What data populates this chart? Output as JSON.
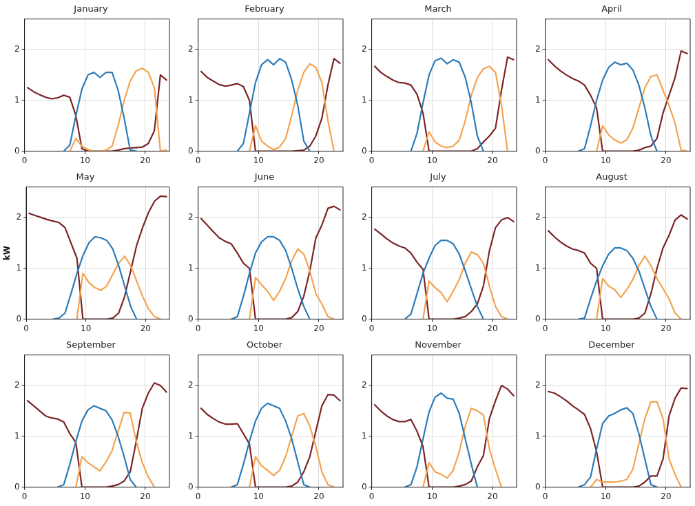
{
  "chart_data": [
    {
      "type": "line",
      "title": "January",
      "x": [
        0.5,
        1.5,
        2.5,
        3.5,
        4.5,
        5.5,
        6.5,
        7.5,
        8.5,
        9.5,
        10.5,
        11.5,
        12.5,
        13.5,
        14.5,
        15.5,
        16.5,
        17.5,
        18.5,
        19.5,
        20.5,
        21.5,
        22.5,
        23.5
      ],
      "xlim": [
        0,
        24
      ],
      "ylim": [
        0,
        2.6
      ],
      "xticks": [
        0,
        10,
        20
      ],
      "yticks": [
        0,
        1,
        2
      ],
      "grid": true,
      "series": [
        {
          "color": "#2b7bba",
          "values": [
            null,
            null,
            null,
            null,
            null,
            null,
            0,
            0.12,
            0.7,
            1.22,
            1.5,
            1.55,
            1.45,
            1.55,
            1.55,
            1.2,
            0.65,
            0.02,
            0,
            null,
            null,
            null,
            null,
            null
          ]
        },
        {
          "color": "#f4a34e",
          "values": [
            null,
            null,
            null,
            null,
            null,
            null,
            null,
            0,
            0.25,
            0.1,
            0.03,
            0,
            0,
            0.02,
            0.1,
            0.5,
            1.0,
            1.38,
            1.58,
            1.63,
            1.55,
            1.25,
            0,
            0.02
          ]
        },
        {
          "color": "#7a2426",
          "values": [
            1.25,
            1.17,
            1.11,
            1.06,
            1.03,
            1.05,
            1.1,
            1.06,
            0.7,
            0.05,
            0,
            0,
            0,
            0,
            0,
            0.02,
            0.05,
            0.06,
            0.07,
            0.08,
            0.15,
            0.4,
            1.5,
            1.4
          ]
        }
      ]
    },
    {
      "type": "line",
      "title": "February",
      "x": [
        0.5,
        1.5,
        2.5,
        3.5,
        4.5,
        5.5,
        6.5,
        7.5,
        8.5,
        9.5,
        10.5,
        11.5,
        12.5,
        13.5,
        14.5,
        15.5,
        16.5,
        17.5,
        18.5,
        19.5,
        20.5,
        21.5,
        22.5,
        23.5
      ],
      "xlim": [
        0,
        24
      ],
      "ylim": [
        0,
        2.6
      ],
      "xticks": [
        0,
        10,
        20
      ],
      "yticks": [
        0,
        1,
        2
      ],
      "grid": true,
      "series": [
        {
          "color": "#2b7bba",
          "values": [
            null,
            null,
            null,
            null,
            null,
            null,
            0,
            0.15,
            0.75,
            1.35,
            1.7,
            1.8,
            1.7,
            1.82,
            1.75,
            1.4,
            0.9,
            0.2,
            0,
            null,
            null,
            null,
            null,
            null
          ]
        },
        {
          "color": "#f4a34e",
          "values": [
            null,
            null,
            null,
            null,
            null,
            null,
            null,
            null,
            0,
            0.5,
            0.2,
            0.1,
            0.03,
            0.08,
            0.25,
            0.7,
            1.2,
            1.55,
            1.72,
            1.65,
            1.35,
            0.6,
            0,
            null
          ]
        },
        {
          "color": "#7a2426",
          "values": [
            1.57,
            1.45,
            1.38,
            1.31,
            1.28,
            1.3,
            1.33,
            1.27,
            1.0,
            0,
            0,
            0,
            0,
            0,
            0,
            0,
            0.01,
            0.02,
            0.1,
            0.3,
            0.65,
            1.3,
            1.82,
            1.73
          ]
        }
      ]
    },
    {
      "type": "line",
      "title": "March",
      "x": [
        0.5,
        1.5,
        2.5,
        3.5,
        4.5,
        5.5,
        6.5,
        7.5,
        8.5,
        9.5,
        10.5,
        11.5,
        12.5,
        13.5,
        14.5,
        15.5,
        16.5,
        17.5,
        18.5,
        19.5,
        20.5,
        21.5,
        22.5,
        23.5
      ],
      "xlim": [
        0,
        24
      ],
      "ylim": [
        0,
        2.6
      ],
      "xticks": [
        0,
        10,
        20
      ],
      "yticks": [
        0,
        1,
        2
      ],
      "grid": true,
      "series": [
        {
          "color": "#2b7bba",
          "values": [
            null,
            null,
            null,
            null,
            null,
            null,
            0,
            0.35,
            0.95,
            1.5,
            1.78,
            1.83,
            1.72,
            1.8,
            1.75,
            1.45,
            0.95,
            0.3,
            0,
            null,
            null,
            null,
            null,
            null
          ]
        },
        {
          "color": "#f4a34e",
          "values": [
            null,
            null,
            null,
            null,
            null,
            null,
            null,
            null,
            0,
            0.38,
            0.18,
            0.1,
            0.07,
            0.1,
            0.22,
            0.6,
            1.1,
            1.45,
            1.62,
            1.67,
            1.55,
            0.9,
            0,
            null
          ]
        },
        {
          "color": "#7a2426",
          "values": [
            1.67,
            1.55,
            1.47,
            1.4,
            1.35,
            1.34,
            1.3,
            1.12,
            0.75,
            0,
            0,
            0,
            0,
            0,
            0,
            0,
            0,
            0.05,
            0.18,
            0.3,
            0.45,
            1.2,
            1.85,
            1.8
          ]
        }
      ]
    },
    {
      "type": "line",
      "title": "April",
      "x": [
        0.5,
        1.5,
        2.5,
        3.5,
        4.5,
        5.5,
        6.5,
        7.5,
        8.5,
        9.5,
        10.5,
        11.5,
        12.5,
        13.5,
        14.5,
        15.5,
        16.5,
        17.5,
        18.5,
        19.5,
        20.5,
        21.5,
        22.5,
        23.5
      ],
      "xlim": [
        0,
        24
      ],
      "ylim": [
        0,
        2.6
      ],
      "xticks": [
        0,
        10,
        20
      ],
      "yticks": [
        0,
        1,
        2
      ],
      "grid": true,
      "series": [
        {
          "color": "#2b7bba",
          "values": [
            null,
            null,
            null,
            null,
            null,
            0,
            0.05,
            0.5,
            1.0,
            1.4,
            1.65,
            1.75,
            1.7,
            1.73,
            1.6,
            1.3,
            0.85,
            0.3,
            0,
            null,
            null,
            null,
            null,
            null
          ]
        },
        {
          "color": "#f4a34e",
          "values": [
            null,
            null,
            null,
            null,
            null,
            null,
            null,
            null,
            0,
            0.5,
            0.32,
            0.22,
            0.16,
            0.22,
            0.45,
            0.85,
            1.25,
            1.47,
            1.5,
            1.2,
            0.9,
            0.55,
            0.02,
            0
          ]
        },
        {
          "color": "#7a2426",
          "values": [
            1.8,
            1.68,
            1.58,
            1.5,
            1.43,
            1.38,
            1.3,
            1.1,
            0.85,
            0,
            0,
            0,
            0,
            0,
            0,
            0.02,
            0.07,
            0.1,
            0.25,
            0.75,
            1.1,
            1.45,
            1.97,
            1.92
          ]
        }
      ]
    },
    {
      "type": "line",
      "title": "May",
      "ylabel": "kW",
      "x": [
        0.5,
        1.5,
        2.5,
        3.5,
        4.5,
        5.5,
        6.5,
        7.5,
        8.5,
        9.5,
        10.5,
        11.5,
        12.5,
        13.5,
        14.5,
        15.5,
        16.5,
        17.5,
        18.5,
        19.5,
        20.5,
        21.5,
        22.5,
        23.5
      ],
      "xlim": [
        0,
        24
      ],
      "ylim": [
        0,
        2.6
      ],
      "xticks": [
        0,
        10,
        20
      ],
      "yticks": [
        0,
        1,
        2
      ],
      "grid": true,
      "series": [
        {
          "color": "#2b7bba",
          "values": [
            null,
            null,
            null,
            null,
            0,
            0.02,
            0.12,
            0.5,
            0.9,
            1.25,
            1.5,
            1.62,
            1.6,
            1.55,
            1.38,
            1.05,
            0.65,
            0.25,
            0,
            null,
            null,
            null,
            null,
            null
          ]
        },
        {
          "color": "#f4a34e",
          "values": [
            null,
            null,
            null,
            null,
            null,
            null,
            null,
            null,
            0,
            0.9,
            0.72,
            0.62,
            0.57,
            0.65,
            0.88,
            1.1,
            1.24,
            1.05,
            0.75,
            0.45,
            0.2,
            0.05,
            0,
            null
          ]
        },
        {
          "color": "#7a2426",
          "values": [
            2.08,
            2.04,
            2.0,
            1.96,
            1.93,
            1.9,
            1.8,
            1.5,
            1.2,
            0,
            0,
            0,
            0,
            0,
            0.02,
            0.12,
            0.45,
            0.95,
            1.45,
            1.8,
            2.1,
            2.32,
            2.42,
            2.41
          ]
        }
      ]
    },
    {
      "type": "line",
      "title": "June",
      "x": [
        0.5,
        1.5,
        2.5,
        3.5,
        4.5,
        5.5,
        6.5,
        7.5,
        8.5,
        9.5,
        10.5,
        11.5,
        12.5,
        13.5,
        14.5,
        15.5,
        16.5,
        17.5,
        18.5,
        19.5,
        20.5,
        21.5,
        22.5,
        23.5
      ],
      "xlim": [
        0,
        24
      ],
      "ylim": [
        0,
        2.6
      ],
      "xticks": [
        0,
        10,
        20
      ],
      "yticks": [
        0,
        1,
        2
      ],
      "grid": true,
      "series": [
        {
          "color": "#2b7bba",
          "values": [
            null,
            null,
            null,
            null,
            null,
            0,
            0.05,
            0.45,
            0.9,
            1.3,
            1.52,
            1.62,
            1.62,
            1.55,
            1.35,
            1.0,
            0.6,
            0.25,
            0,
            null,
            null,
            null,
            null,
            null
          ]
        },
        {
          "color": "#f4a34e",
          "values": [
            null,
            null,
            null,
            null,
            null,
            null,
            null,
            null,
            0,
            0.82,
            0.68,
            0.55,
            0.37,
            0.55,
            0.8,
            1.15,
            1.38,
            1.28,
            0.95,
            0.5,
            0.3,
            0.05,
            0,
            null
          ]
        },
        {
          "color": "#7a2426",
          "values": [
            1.98,
            1.85,
            1.72,
            1.6,
            1.53,
            1.48,
            1.3,
            1.1,
            1.0,
            0,
            0,
            0,
            0,
            0,
            0,
            0.03,
            0.15,
            0.45,
            0.95,
            1.6,
            1.85,
            2.18,
            2.22,
            2.15
          ]
        }
      ]
    },
    {
      "type": "line",
      "title": "July",
      "x": [
        0.5,
        1.5,
        2.5,
        3.5,
        4.5,
        5.5,
        6.5,
        7.5,
        8.5,
        9.5,
        10.5,
        11.5,
        12.5,
        13.5,
        14.5,
        15.5,
        16.5,
        17.5,
        18.5,
        19.5,
        20.5,
        21.5,
        22.5,
        23.5
      ],
      "xlim": [
        0,
        24
      ],
      "ylim": [
        0,
        2.6
      ],
      "xticks": [
        0,
        10,
        20
      ],
      "yticks": [
        0,
        1,
        2
      ],
      "grid": true,
      "series": [
        {
          "color": "#2b7bba",
          "values": [
            null,
            null,
            null,
            null,
            null,
            0,
            0.1,
            0.5,
            0.9,
            1.2,
            1.45,
            1.55,
            1.55,
            1.48,
            1.28,
            0.95,
            0.6,
            0.25,
            0,
            null,
            null,
            null,
            null,
            null
          ]
        },
        {
          "color": "#f4a34e",
          "values": [
            null,
            null,
            null,
            null,
            null,
            null,
            null,
            null,
            0,
            0.75,
            0.62,
            0.52,
            0.34,
            0.55,
            0.78,
            1.1,
            1.32,
            1.27,
            1.1,
            0.65,
            0.25,
            0.05,
            0,
            null
          ]
        },
        {
          "color": "#7a2426",
          "values": [
            1.77,
            1.68,
            1.58,
            1.5,
            1.44,
            1.4,
            1.3,
            1.12,
            0.98,
            0,
            0,
            0,
            0,
            0,
            0.02,
            0.05,
            0.15,
            0.3,
            0.65,
            1.35,
            1.8,
            1.95,
            2.0,
            1.92
          ]
        }
      ]
    },
    {
      "type": "line",
      "title": "August",
      "x": [
        0.5,
        1.5,
        2.5,
        3.5,
        4.5,
        5.5,
        6.5,
        7.5,
        8.5,
        9.5,
        10.5,
        11.5,
        12.5,
        13.5,
        14.5,
        15.5,
        16.5,
        17.5,
        18.5,
        19.5,
        20.5,
        21.5,
        22.5,
        23.5
      ],
      "xlim": [
        0,
        24
      ],
      "ylim": [
        0,
        2.6
      ],
      "xticks": [
        0,
        10,
        20
      ],
      "yticks": [
        0,
        1,
        2
      ],
      "grid": true,
      "series": [
        {
          "color": "#2b7bba",
          "values": [
            null,
            null,
            null,
            null,
            null,
            0,
            0.02,
            0.4,
            0.75,
            1.05,
            1.28,
            1.4,
            1.4,
            1.35,
            1.2,
            0.95,
            0.6,
            0.25,
            0,
            null,
            null,
            null,
            null,
            null
          ]
        },
        {
          "color": "#f4a34e",
          "values": [
            null,
            null,
            null,
            null,
            null,
            null,
            null,
            null,
            0,
            0.8,
            0.65,
            0.58,
            0.43,
            0.58,
            0.78,
            1.05,
            1.24,
            1.05,
            0.8,
            0.6,
            0.4,
            0.12,
            0,
            null
          ]
        },
        {
          "color": "#7a2426",
          "values": [
            1.74,
            1.62,
            1.52,
            1.44,
            1.38,
            1.35,
            1.3,
            1.1,
            1.0,
            0,
            0,
            0,
            0,
            0,
            0,
            0.02,
            0.12,
            0.5,
            1.0,
            1.4,
            1.65,
            1.95,
            2.05,
            1.97
          ]
        }
      ]
    },
    {
      "type": "line",
      "title": "September",
      "x": [
        0.5,
        1.5,
        2.5,
        3.5,
        4.5,
        5.5,
        6.5,
        7.5,
        8.5,
        9.5,
        10.5,
        11.5,
        12.5,
        13.5,
        14.5,
        15.5,
        16.5,
        17.5,
        18.5,
        19.5,
        20.5,
        21.5,
        22.5,
        23.5
      ],
      "xlim": [
        0,
        24
      ],
      "ylim": [
        0,
        2.6
      ],
      "xticks": [
        0,
        10,
        20
      ],
      "yticks": [
        0,
        1,
        2
      ],
      "grid": true,
      "series": [
        {
          "color": "#2b7bba",
          "values": [
            null,
            null,
            null,
            null,
            null,
            0,
            0.05,
            0.45,
            0.9,
            1.3,
            1.52,
            1.6,
            1.55,
            1.5,
            1.32,
            1.0,
            0.6,
            0.15,
            0,
            null,
            null,
            null,
            null,
            null
          ]
        },
        {
          "color": "#f4a34e",
          "values": [
            null,
            null,
            null,
            null,
            null,
            null,
            null,
            null,
            0,
            0.6,
            0.48,
            0.4,
            0.32,
            0.5,
            0.72,
            1.1,
            1.47,
            1.46,
            0.9,
            0.48,
            0.2,
            0,
            null,
            null
          ]
        },
        {
          "color": "#7a2426",
          "values": [
            1.7,
            1.6,
            1.5,
            1.4,
            1.36,
            1.34,
            1.28,
            1.05,
            0.88,
            0,
            0,
            0,
            0,
            0,
            0.02,
            0.05,
            0.12,
            0.3,
            0.9,
            1.55,
            1.85,
            2.05,
            2.0,
            1.87
          ]
        }
      ]
    },
    {
      "type": "line",
      "title": "October",
      "x": [
        0.5,
        1.5,
        2.5,
        3.5,
        4.5,
        5.5,
        6.5,
        7.5,
        8.5,
        9.5,
        10.5,
        11.5,
        12.5,
        13.5,
        14.5,
        15.5,
        16.5,
        17.5,
        18.5,
        19.5,
        20.5,
        21.5,
        22.5,
        23.5
      ],
      "xlim": [
        0,
        24
      ],
      "ylim": [
        0,
        2.6
      ],
      "xticks": [
        0,
        10,
        20
      ],
      "yticks": [
        0,
        1,
        2
      ],
      "grid": true,
      "series": [
        {
          "color": "#2b7bba",
          "values": [
            null,
            null,
            null,
            null,
            null,
            0,
            0.05,
            0.45,
            0.9,
            1.3,
            1.55,
            1.65,
            1.6,
            1.55,
            1.3,
            0.95,
            0.5,
            0.05,
            0,
            null,
            null,
            null,
            null,
            null
          ]
        },
        {
          "color": "#f4a34e",
          "values": [
            null,
            null,
            null,
            null,
            null,
            null,
            null,
            null,
            0,
            0.6,
            0.42,
            0.33,
            0.23,
            0.33,
            0.6,
            1.0,
            1.4,
            1.45,
            1.2,
            0.8,
            0.3,
            0.05,
            0,
            null
          ]
        },
        {
          "color": "#7a2426",
          "values": [
            1.55,
            1.43,
            1.35,
            1.28,
            1.24,
            1.24,
            1.25,
            1.05,
            0.85,
            0,
            0,
            0,
            0,
            0,
            0,
            0.02,
            0.1,
            0.3,
            0.6,
            1.1,
            1.6,
            1.82,
            1.81,
            1.7
          ]
        }
      ]
    },
    {
      "type": "line",
      "title": "November",
      "x": [
        0.5,
        1.5,
        2.5,
        3.5,
        4.5,
        5.5,
        6.5,
        7.5,
        8.5,
        9.5,
        10.5,
        11.5,
        12.5,
        13.5,
        14.5,
        15.5,
        16.5,
        17.5,
        18.5,
        19.5,
        20.5,
        21.5,
        22.5,
        23.5
      ],
      "xlim": [
        0,
        24
      ],
      "ylim": [
        0,
        2.6
      ],
      "xticks": [
        0,
        10,
        20
      ],
      "yticks": [
        0,
        1,
        2
      ],
      "grid": true,
      "series": [
        {
          "color": "#2b7bba",
          "values": [
            null,
            null,
            null,
            null,
            null,
            0,
            0.05,
            0.4,
            0.95,
            1.48,
            1.77,
            1.85,
            1.75,
            1.73,
            1.45,
            0.95,
            0.45,
            0,
            null,
            null,
            null,
            null,
            null,
            null
          ]
        },
        {
          "color": "#f4a34e",
          "values": [
            null,
            null,
            null,
            null,
            null,
            null,
            null,
            null,
            0,
            0.48,
            0.3,
            0.25,
            0.18,
            0.33,
            0.7,
            1.2,
            1.55,
            1.5,
            1.42,
            0.75,
            0.35,
            0,
            null,
            null
          ]
        },
        {
          "color": "#7a2426",
          "values": [
            1.62,
            1.5,
            1.4,
            1.33,
            1.29,
            1.29,
            1.33,
            1.1,
            0.8,
            0,
            0,
            0,
            0,
            0,
            0.02,
            0.05,
            0.12,
            0.4,
            0.62,
            1.35,
            1.7,
            2.0,
            1.93,
            1.8
          ]
        }
      ]
    },
    {
      "type": "line",
      "title": "December",
      "x": [
        0.5,
        1.5,
        2.5,
        3.5,
        4.5,
        5.5,
        6.5,
        7.5,
        8.5,
        9.5,
        10.5,
        11.5,
        12.5,
        13.5,
        14.5,
        15.5,
        16.5,
        17.5,
        18.5,
        19.5,
        20.5,
        21.5,
        22.5,
        23.5
      ],
      "xlim": [
        0,
        24
      ],
      "ylim": [
        0,
        2.6
      ],
      "xticks": [
        0,
        10,
        20
      ],
      "yticks": [
        0,
        1,
        2
      ],
      "grid": true,
      "series": [
        {
          "color": "#2b7bba",
          "values": [
            null,
            null,
            null,
            null,
            null,
            0,
            0.05,
            0.2,
            0.75,
            1.25,
            1.4,
            1.45,
            1.52,
            1.56,
            1.45,
            1.05,
            0.55,
            0.05,
            0,
            null,
            null,
            null,
            null,
            null
          ]
        },
        {
          "color": "#f4a34e",
          "values": [
            null,
            null,
            null,
            null,
            null,
            null,
            null,
            0,
            0.15,
            0.1,
            0.1,
            0.1,
            0.12,
            0.15,
            0.35,
            0.85,
            1.35,
            1.68,
            1.68,
            1.35,
            0.55,
            0.25,
            0,
            null
          ]
        },
        {
          "color": "#7a2426",
          "values": [
            1.88,
            1.85,
            1.78,
            1.7,
            1.6,
            1.52,
            1.43,
            1.15,
            0.7,
            0,
            0,
            0,
            0,
            0,
            0,
            0.02,
            0.1,
            0.22,
            0.22,
            0.55,
            1.4,
            1.75,
            1.95,
            1.94
          ]
        }
      ]
    }
  ]
}
